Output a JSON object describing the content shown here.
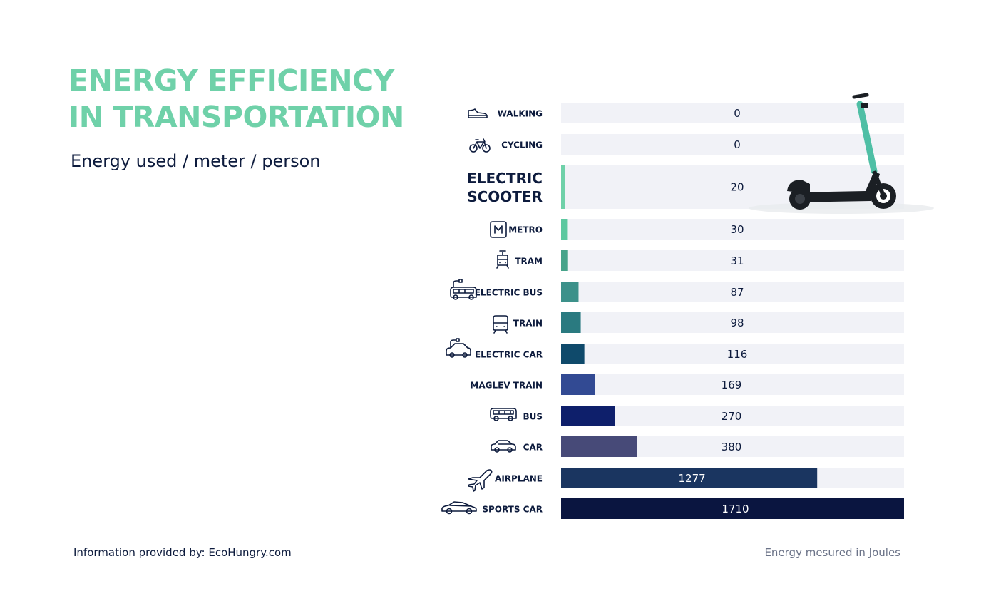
{
  "title_lines": [
    "ENERGY EFFICIENCY",
    "IN TRANSPORTATION"
  ],
  "subtitle": "Energy used / meter / person",
  "footer": {
    "source": "Information provided by: EcoHungry.com",
    "unit_note": "Energy mesured in Joules"
  },
  "colors": {
    "title": "#6fd1a9",
    "track": "#f1f2f7",
    "text_dark": "#0d1b3d"
  },
  "chart_data": {
    "type": "bar",
    "orientation": "horizontal",
    "title": "ENERGY EFFICIENCY IN TRANSPORTATION",
    "subtitle": "Energy used / meter / person",
    "xlim": [
      0,
      1710
    ],
    "grid": false,
    "legend": "none",
    "categories": [
      "WALKING",
      "CYCLING",
      "ELECTRIC SCOOTER",
      "METRO",
      "TRAM",
      "ELECTRIC BUS",
      "TRAIN",
      "ELECTRIC CAR",
      "MAGLEV TRAIN",
      "BUS",
      "CAR",
      "AIRPLANE",
      "SPORTS CAR"
    ],
    "label_lines": [
      [
        "WALKING"
      ],
      [
        "CYCLING"
      ],
      [
        "ELECTRIC",
        "SCOOTER"
      ],
      [
        "METRO"
      ],
      [
        "TRAM"
      ],
      [
        "ELECTRIC BUS"
      ],
      [
        "TRAIN"
      ],
      [
        "ELECTRIC CAR"
      ],
      [
        "MAGLEV TRAIN"
      ],
      [
        "BUS"
      ],
      [
        "CAR"
      ],
      [
        "AIRPLANE"
      ],
      [
        "SPORTS CAR"
      ]
    ],
    "icons": [
      "shoe-icon",
      "bicycle-icon",
      "",
      "metro-icon",
      "tram-icon",
      "electric-bus-icon",
      "train-icon",
      "electric-car-icon",
      "",
      "bus-icon",
      "car-icon",
      "airplane-icon",
      "sports-car-icon"
    ],
    "values": [
      0,
      0,
      20,
      30,
      31,
      87,
      98,
      116,
      169,
      270,
      380,
      1277,
      1710
    ],
    "value_labels": [
      "0",
      "0",
      "20",
      "30",
      "31",
      "87",
      "98",
      "116",
      "169",
      "270",
      "380",
      "1277",
      "1710"
    ],
    "bar_colors": [
      "#6fd1a9",
      "#6fd1a9",
      "#6fd1a9",
      "#5dc8a0",
      "#47a38a",
      "#3c918a",
      "#2a7a80",
      "#0f4a6b",
      "#324a93",
      "#0e1f6b",
      "#474a78",
      "#1a3560",
      "#0a1540"
    ]
  }
}
